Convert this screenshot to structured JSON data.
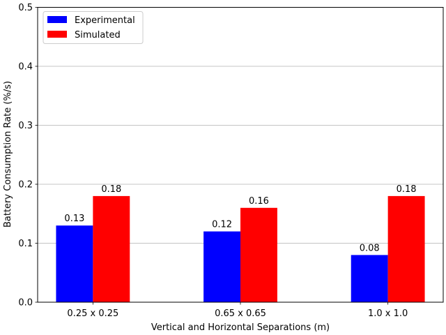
{
  "chart_data": {
    "type": "bar",
    "categories": [
      "0.25 x 0.25",
      "0.65 x 0.65",
      "1.0 x 1.0"
    ],
    "series": [
      {
        "name": "Experimental",
        "color": "#0000ff",
        "values": [
          0.13,
          0.12,
          0.08
        ],
        "labels": [
          "0.13",
          "0.12",
          "0.08"
        ]
      },
      {
        "name": "Simulated",
        "color": "#ff0000",
        "values": [
          0.18,
          0.16,
          0.18
        ],
        "labels": [
          "0.18",
          "0.16",
          "0.18"
        ]
      }
    ],
    "xlabel": "Vertical and Horizontal Separations (m)",
    "ylabel": "Battery Consumption Rate (%/s)",
    "ylim": [
      0,
      0.5
    ],
    "yticks": [
      0.0,
      0.1,
      0.2,
      0.3,
      0.4,
      0.5
    ],
    "ytick_labels": [
      "0.0",
      "0.1",
      "0.2",
      "0.3",
      "0.4",
      "0.5"
    ],
    "grid": "y-major",
    "legend_position": "top-left"
  }
}
